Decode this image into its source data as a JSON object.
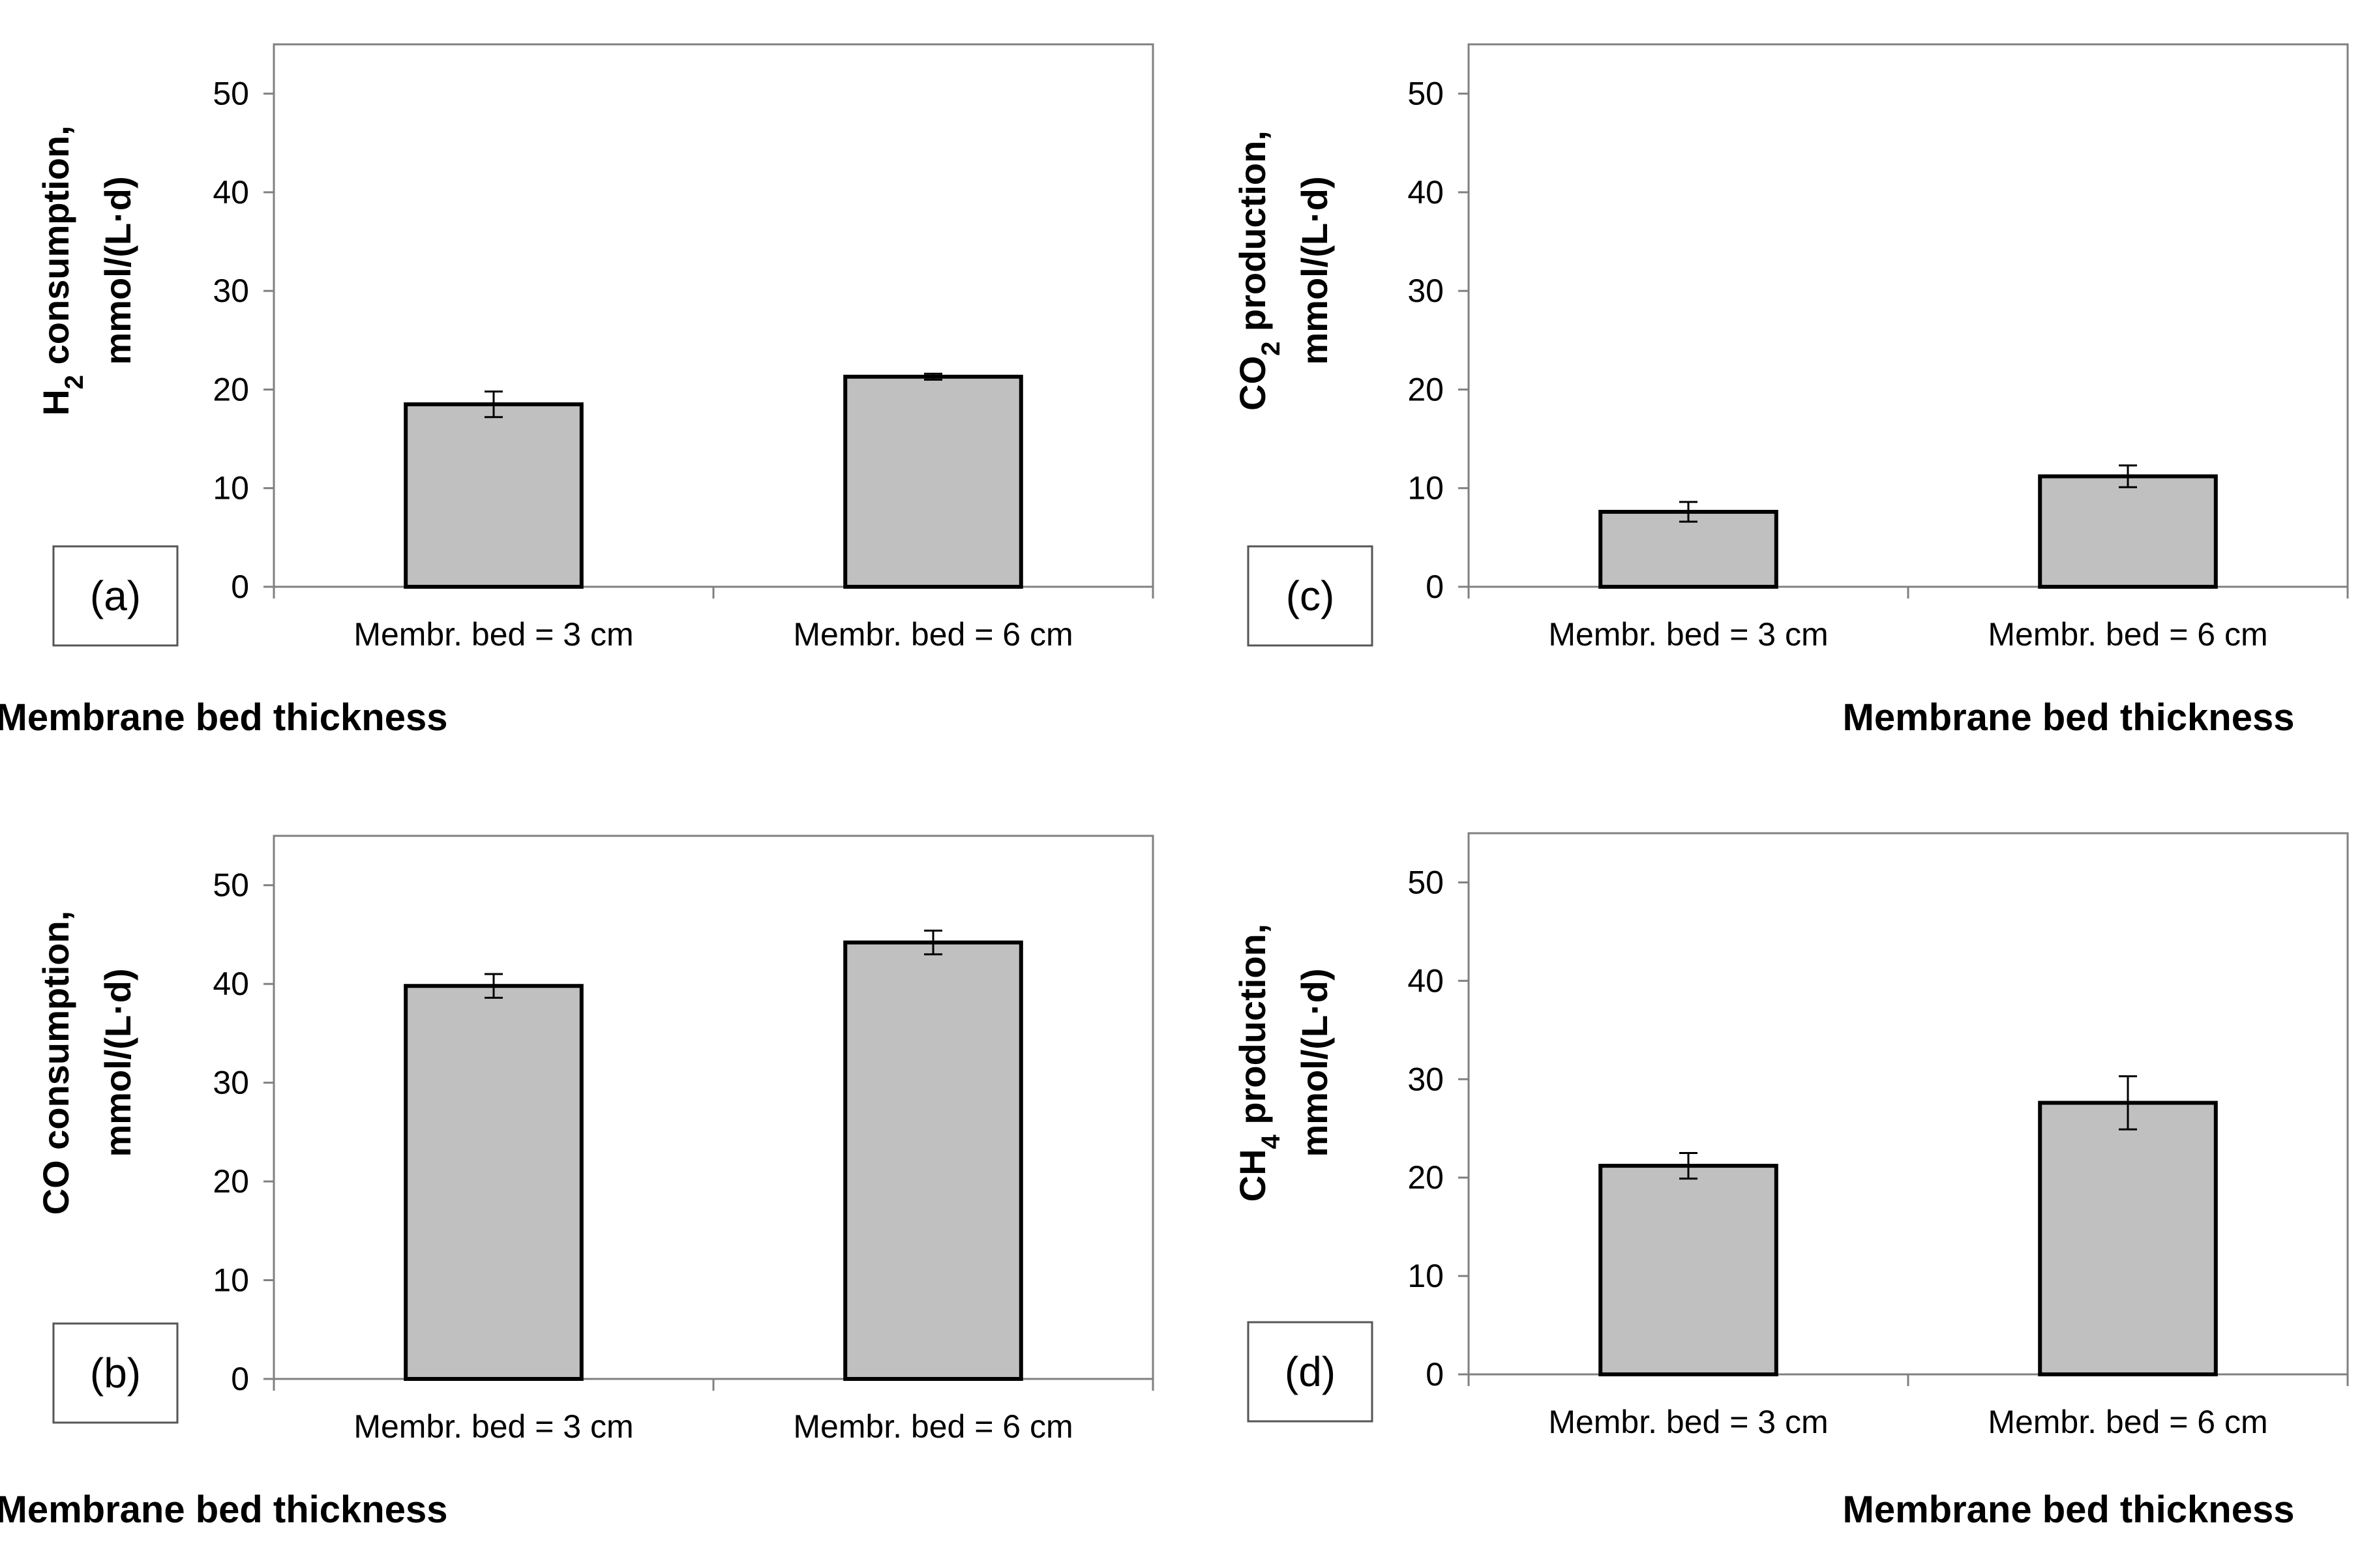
{
  "chart_data": [
    {
      "type": "bar",
      "panel": "(a)",
      "categories": [
        "Membr. bed = 3 cm",
        "Membr. bed = 6 cm"
      ],
      "values": [
        18.5,
        21.3
      ],
      "errors": [
        1.3,
        0.3
      ],
      "ylim": [
        0,
        55
      ],
      "yticks": [
        "0",
        "10",
        "20",
        "30",
        "40",
        "50"
      ],
      "xlabel": "Membrane bed thickness",
      "ylabel_line1": {
        "pre": "H",
        "sub": "2",
        "post": " consumption,"
      },
      "ylabel_line2": "mmol/(L·d)",
      "bar_color": "#c0c0c0",
      "grid": false
    },
    {
      "type": "bar",
      "panel": "(b)",
      "categories": [
        "Membr. bed = 3 cm",
        "Membr. bed = 6 cm"
      ],
      "values": [
        39.8,
        44.2
      ],
      "errors": [
        1.2,
        1.2
      ],
      "ylim": [
        0,
        55
      ],
      "yticks": [
        "0",
        "10",
        "20",
        "30",
        "40",
        "50"
      ],
      "xlabel": "Membrane bed thickness",
      "ylabel_line1": {
        "pre": "CO consumption,",
        "sub": "",
        "post": ""
      },
      "ylabel_line2": "mmol/(L·d)",
      "bar_color": "#c0c0c0",
      "grid": false
    },
    {
      "type": "bar",
      "panel": "(c)",
      "categories": [
        "Membr. bed = 3 cm",
        "Membr. bed = 6 cm"
      ],
      "values": [
        7.6,
        11.2
      ],
      "errors": [
        1.0,
        1.1
      ],
      "ylim": [
        0,
        55
      ],
      "yticks": [
        "0",
        "10",
        "20",
        "30",
        "40",
        "50"
      ],
      "xlabel": "Membrane bed thickness",
      "ylabel_line1": {
        "pre": "CO",
        "sub": "2",
        "post": " production,"
      },
      "ylabel_line2": "mmol/(L·d)",
      "bar_color": "#c0c0c0",
      "grid": false
    },
    {
      "type": "bar",
      "panel": "(d)",
      "categories": [
        "Membr. bed = 3 cm",
        "Membr. bed = 6 cm"
      ],
      "values": [
        21.2,
        27.6
      ],
      "errors": [
        1.3,
        2.7
      ],
      "ylim": [
        0,
        55
      ],
      "yticks": [
        "0",
        "10",
        "20",
        "30",
        "40",
        "50"
      ],
      "xlabel": "Membrane bed thickness",
      "ylabel_line1": {
        "pre": "CH",
        "sub": "4",
        "post": " production,"
      },
      "ylabel_line2": "mmol/(L·d)",
      "bar_color": "#c0c0c0",
      "grid": false
    }
  ]
}
